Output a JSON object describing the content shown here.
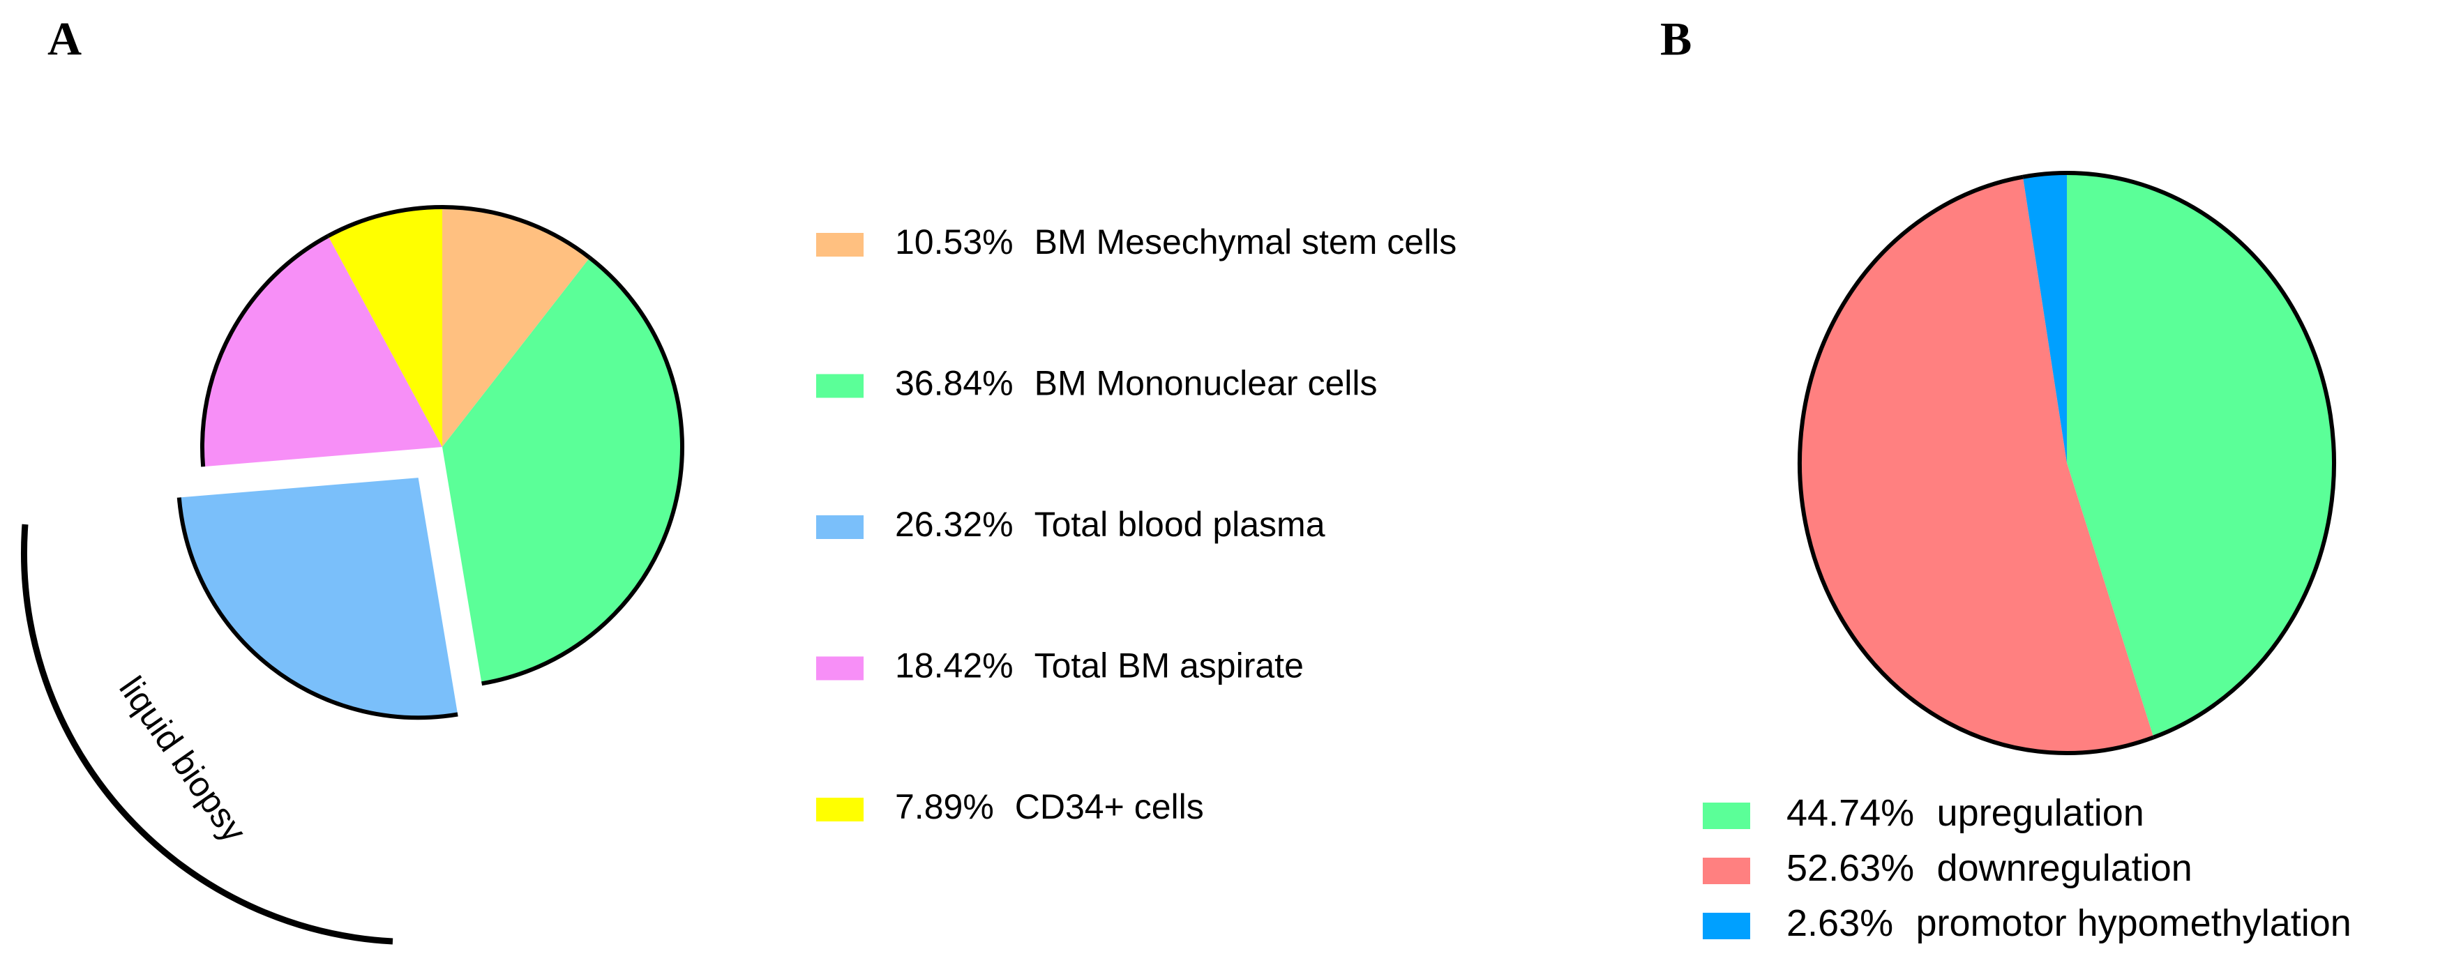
{
  "chart_data": [
    {
      "type": "pie",
      "panel_label": "A",
      "categories": [
        "BM Mesechymal stem cells",
        "BM Mononuclear cells",
        "Total blood plasma",
        "Total BM aspirate",
        "CD34+ cells"
      ],
      "values": [
        10.53,
        36.84,
        26.32,
        18.42,
        7.89
      ],
      "value_labels": [
        "10.53%",
        "36.84%",
        "26.32%",
        "18.42%",
        "7.89%"
      ],
      "colors": [
        "#ffc080",
        "#5bff98",
        "#7abffa",
        "#f78ff7",
        "#ffff00"
      ],
      "exploded": [
        false,
        false,
        true,
        false,
        false
      ],
      "annotation": "liquid biopsy"
    },
    {
      "type": "pie",
      "panel_label": "B",
      "categories": [
        "upregulation",
        "downregulation",
        "promotor hypomethylation"
      ],
      "values": [
        44.74,
        52.63,
        2.63
      ],
      "value_labels": [
        "44.74%",
        "52.63%",
        "2.63%"
      ],
      "colors": [
        "#5bff98",
        "#ff8080",
        "#00a0ff"
      ]
    }
  ]
}
